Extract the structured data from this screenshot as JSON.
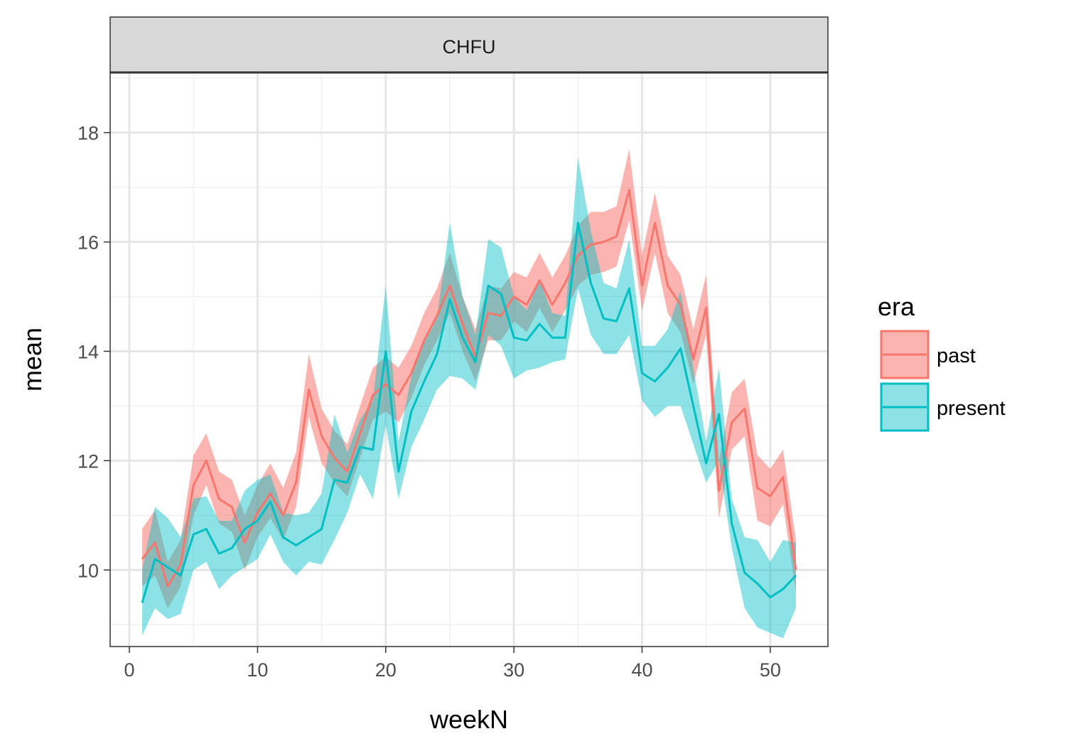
{
  "chart_data": {
    "type": "line",
    "facet": "CHFU",
    "xlabel": "weekN",
    "ylabel": "mean",
    "xlim": [
      -1.5,
      54.5
    ],
    "ylim": [
      8.6,
      19.1
    ],
    "xticks": [
      0,
      10,
      20,
      30,
      40,
      50
    ],
    "yticks": [
      10,
      12,
      14,
      16,
      18
    ],
    "grid": true,
    "legend": {
      "title": "era",
      "position": "right"
    },
    "x": [
      1,
      2,
      3,
      4,
      5,
      6,
      7,
      8,
      9,
      10,
      11,
      12,
      13,
      14,
      15,
      16,
      17,
      18,
      19,
      20,
      21,
      22,
      23,
      24,
      25,
      26,
      27,
      28,
      29,
      30,
      31,
      32,
      33,
      34,
      35,
      36,
      37,
      38,
      39,
      40,
      41,
      42,
      43,
      44,
      45,
      46,
      47,
      48,
      49,
      50,
      51,
      52
    ],
    "series": [
      {
        "name": "past",
        "color": "#F8766D",
        "mean": [
          10.2,
          10.5,
          9.7,
          10.1,
          11.55,
          12.0,
          11.3,
          11.15,
          10.5,
          11.05,
          11.4,
          11.0,
          11.6,
          13.3,
          12.45,
          12.05,
          11.8,
          12.5,
          13.2,
          13.4,
          13.2,
          13.6,
          14.2,
          14.65,
          15.2,
          14.5,
          13.9,
          14.7,
          14.65,
          15.0,
          14.85,
          15.3,
          14.85,
          15.25,
          15.75,
          15.95,
          16.0,
          16.1,
          16.95,
          15.2,
          16.35,
          15.2,
          14.85,
          13.85,
          14.8,
          11.45,
          12.7,
          12.95,
          11.5,
          11.35,
          11.7,
          10.0
        ],
        "lower": [
          9.7,
          9.9,
          9.3,
          9.7,
          11.0,
          11.55,
          10.85,
          10.7,
          10.0,
          10.6,
          10.95,
          10.55,
          11.15,
          12.8,
          11.95,
          11.6,
          11.35,
          12.05,
          12.75,
          12.9,
          12.7,
          13.15,
          13.75,
          14.2,
          14.7,
          14.0,
          13.45,
          14.2,
          14.2,
          14.55,
          14.35,
          14.8,
          14.35,
          14.75,
          15.2,
          15.4,
          15.45,
          15.55,
          16.4,
          14.75,
          15.8,
          14.7,
          14.35,
          13.4,
          14.3,
          10.95,
          12.2,
          12.45,
          10.9,
          10.8,
          11.2,
          9.6
        ],
        "upper": [
          10.75,
          11.1,
          10.15,
          10.55,
          12.1,
          12.5,
          11.8,
          11.65,
          11.0,
          11.55,
          11.95,
          11.5,
          12.15,
          13.95,
          12.95,
          12.55,
          12.3,
          13.0,
          13.7,
          13.9,
          13.7,
          14.1,
          14.7,
          15.15,
          15.8,
          15.0,
          14.4,
          15.2,
          15.15,
          15.45,
          15.35,
          15.8,
          15.35,
          15.75,
          16.3,
          16.55,
          16.55,
          16.65,
          17.7,
          15.75,
          16.9,
          15.75,
          15.4,
          14.4,
          15.4,
          12.0,
          13.25,
          13.5,
          12.1,
          11.85,
          12.2,
          10.55
        ]
      },
      {
        "name": "present",
        "color": "#00BFC4",
        "mean": [
          9.4,
          10.2,
          10.05,
          9.9,
          10.65,
          10.75,
          10.3,
          10.4,
          10.75,
          10.9,
          11.25,
          10.6,
          10.45,
          10.6,
          10.75,
          11.65,
          11.6,
          12.25,
          12.2,
          14.0,
          11.8,
          12.9,
          13.45,
          13.95,
          14.95,
          14.25,
          13.8,
          15.2,
          15.05,
          14.25,
          14.2,
          14.5,
          14.25,
          14.25,
          16.35,
          15.25,
          14.6,
          14.55,
          15.15,
          13.6,
          13.45,
          13.7,
          14.05,
          13.0,
          11.95,
          12.85,
          10.85,
          9.95,
          9.75,
          9.5,
          9.65,
          9.9
        ],
        "lower": [
          8.8,
          9.3,
          9.1,
          9.2,
          10.0,
          10.15,
          9.65,
          9.9,
          10.05,
          10.2,
          10.65,
          10.15,
          9.9,
          10.15,
          10.1,
          10.55,
          11.05,
          11.75,
          11.3,
          12.65,
          11.3,
          12.25,
          12.75,
          13.3,
          13.55,
          13.5,
          13.3,
          14.3,
          14.1,
          13.5,
          13.65,
          13.7,
          13.8,
          13.85,
          15.15,
          14.3,
          13.95,
          13.95,
          14.3,
          13.1,
          12.8,
          13.0,
          13.0,
          12.3,
          11.6,
          12.0,
          10.4,
          9.3,
          8.95,
          8.85,
          8.75,
          9.3
        ],
        "upper": [
          10.0,
          11.15,
          10.95,
          10.6,
          11.3,
          11.35,
          10.9,
          10.9,
          11.45,
          11.65,
          11.75,
          11.05,
          11.0,
          11.05,
          11.4,
          12.85,
          12.15,
          12.75,
          13.1,
          15.2,
          12.35,
          13.55,
          14.15,
          14.6,
          16.35,
          15.0,
          14.3,
          16.05,
          15.9,
          15.0,
          14.75,
          15.3,
          14.7,
          14.65,
          17.55,
          16.2,
          15.25,
          15.15,
          16.05,
          14.1,
          14.1,
          14.4,
          15.1,
          13.7,
          12.35,
          13.7,
          11.3,
          10.6,
          10.55,
          10.15,
          10.55,
          10.5
        ]
      }
    ]
  }
}
